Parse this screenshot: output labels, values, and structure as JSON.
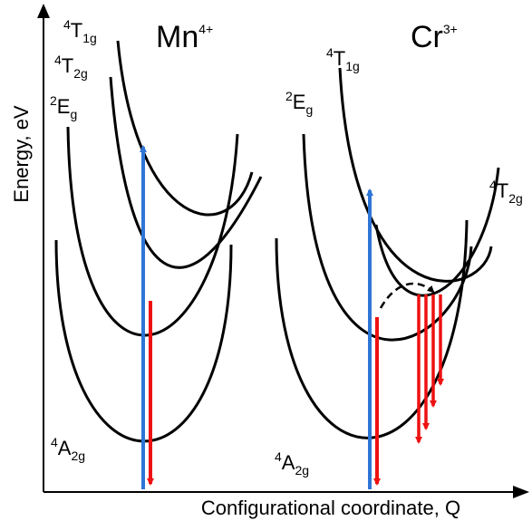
{
  "axes": {
    "y_label": "Energy, eV",
    "x_label": "Configurational coordinate, Q"
  },
  "panels": {
    "mn": {
      "ion": {
        "base": "Mn",
        "charge": "4+"
      },
      "states": {
        "t1g": {
          "sup": "4",
          "main": "T",
          "sub": "1g"
        },
        "t2g": {
          "sup": "4",
          "main": "T",
          "sub": "2g"
        },
        "eg": {
          "sup": "2",
          "main": "E",
          "sub": "g"
        },
        "a2g": {
          "sup": "4",
          "main": "A",
          "sub": "2g"
        }
      }
    },
    "cr": {
      "ion": {
        "base": "Cr",
        "charge": "3+"
      },
      "states": {
        "t1g": {
          "sup": "4",
          "main": "T",
          "sub": "1g"
        },
        "t2g": {
          "sup": "4",
          "main": "T",
          "sub": "2g"
        },
        "eg": {
          "sup": "2",
          "main": "E",
          "sub": "g"
        },
        "a2g": {
          "sup": "4",
          "main": "A",
          "sub": "2g"
        }
      }
    }
  },
  "colors": {
    "curve": "#000000",
    "absorption": "#2e75d6",
    "emission": "#ee1111",
    "relaxation": "#000000"
  }
}
